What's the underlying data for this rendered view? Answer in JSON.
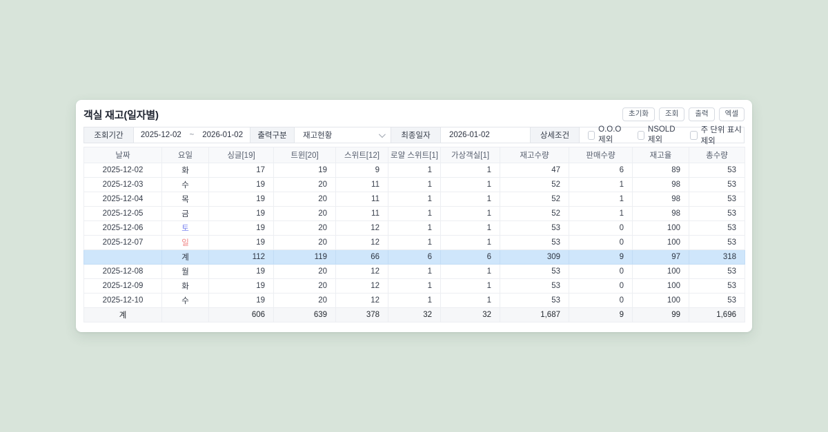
{
  "page": {
    "title": "객실 재고(일자별)"
  },
  "toolbar": {
    "buttons": [
      {
        "name": "reset-button",
        "label": "초기화"
      },
      {
        "name": "search-button",
        "label": "조회"
      },
      {
        "name": "print-button",
        "label": "출력"
      },
      {
        "name": "excel-button",
        "label": "엑셀"
      }
    ]
  },
  "filters": {
    "period_label": "조회기간",
    "date_from": "2025-12-02",
    "tilde": "~",
    "date_to": "2026-01-02",
    "output_label": "출력구분",
    "output_value": "재고현황",
    "last_date_label": "최종일자",
    "last_date_value": "2026-01-02",
    "detail_label": "상세조건",
    "checkboxes": [
      {
        "label": "O.O.O 제외",
        "checked": false
      },
      {
        "label": "NSOLD 제외",
        "checked": false
      },
      {
        "label": "주 단위 표시 제외",
        "checked": false
      }
    ]
  },
  "colors": {
    "page_bg": "#d8e4da",
    "saturday": "#7b85f0",
    "sunday": "#f08383",
    "week_total_bg": "#cfe6fb",
    "grand_total_bg": "#f6f7f9"
  },
  "table": {
    "columns": [
      "날짜",
      "요일",
      "싱글[19]",
      "트윈[20]",
      "스위트[12]",
      "로얄 스위트[1]",
      "가상객실[1]",
      "재고수량",
      "판매수량",
      "재고율",
      "총수량"
    ],
    "rows": [
      {
        "type": "data",
        "date": "2025-12-02",
        "day": "화",
        "day_color": "default",
        "values": [
          "17",
          "19",
          "9",
          "1",
          "1",
          "47",
          "6",
          "89",
          "53"
        ]
      },
      {
        "type": "data",
        "date": "2025-12-03",
        "day": "수",
        "day_color": "default",
        "values": [
          "19",
          "20",
          "11",
          "1",
          "1",
          "52",
          "1",
          "98",
          "53"
        ]
      },
      {
        "type": "data",
        "date": "2025-12-04",
        "day": "목",
        "day_color": "default",
        "values": [
          "19",
          "20",
          "11",
          "1",
          "1",
          "52",
          "1",
          "98",
          "53"
        ]
      },
      {
        "type": "data",
        "date": "2025-12-05",
        "day": "금",
        "day_color": "default",
        "values": [
          "19",
          "20",
          "11",
          "1",
          "1",
          "52",
          "1",
          "98",
          "53"
        ]
      },
      {
        "type": "data",
        "date": "2025-12-06",
        "day": "토",
        "day_color": "sat",
        "values": [
          "19",
          "20",
          "12",
          "1",
          "1",
          "53",
          "0",
          "100",
          "53"
        ]
      },
      {
        "type": "data",
        "date": "2025-12-07",
        "day": "일",
        "day_color": "sun",
        "values": [
          "19",
          "20",
          "12",
          "1",
          "1",
          "53",
          "0",
          "100",
          "53"
        ]
      },
      {
        "type": "week_total",
        "date": "",
        "day": "계",
        "day_color": "default",
        "values": [
          "112",
          "119",
          "66",
          "6",
          "6",
          "309",
          "9",
          "97",
          "318"
        ]
      },
      {
        "type": "data",
        "date": "2025-12-08",
        "day": "월",
        "day_color": "default",
        "values": [
          "19",
          "20",
          "12",
          "1",
          "1",
          "53",
          "0",
          "100",
          "53"
        ]
      },
      {
        "type": "data",
        "date": "2025-12-09",
        "day": "화",
        "day_color": "default",
        "values": [
          "19",
          "20",
          "12",
          "1",
          "1",
          "53",
          "0",
          "100",
          "53"
        ]
      },
      {
        "type": "data",
        "date": "2025-12-10",
        "day": "수",
        "day_color": "default",
        "values": [
          "19",
          "20",
          "12",
          "1",
          "1",
          "53",
          "0",
          "100",
          "53"
        ]
      },
      {
        "type": "grand_total",
        "date": "계",
        "day": "",
        "day_color": "default",
        "values": [
          "606",
          "639",
          "378",
          "32",
          "32",
          "1,687",
          "9",
          "99",
          "1,696"
        ]
      }
    ]
  }
}
